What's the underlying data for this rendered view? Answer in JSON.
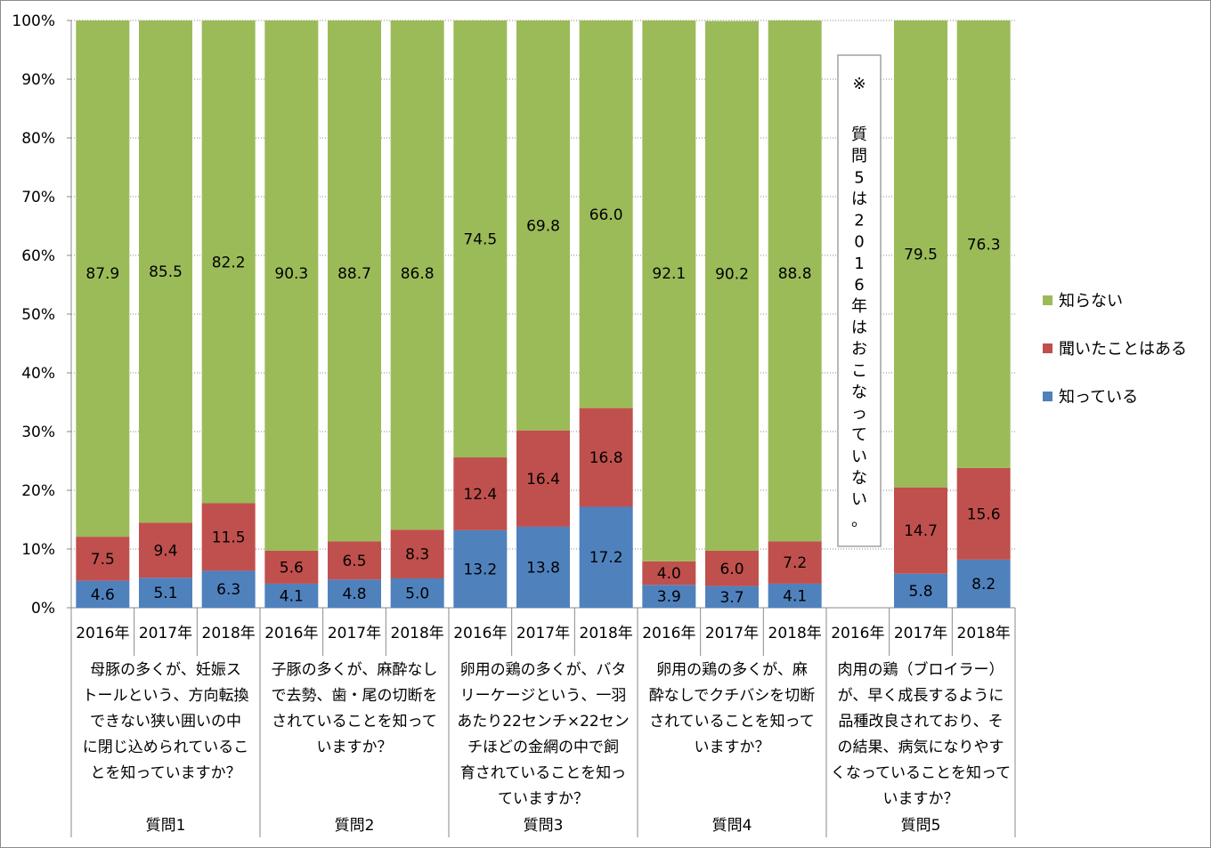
{
  "chart_data": {
    "type": "bar",
    "stacked": true,
    "percent_stacked": true,
    "y_ticks": [
      "0%",
      "10%",
      "20%",
      "30%",
      "40%",
      "50%",
      "60%",
      "70%",
      "80%",
      "90%",
      "100%"
    ],
    "ylim": [
      0,
      100
    ],
    "grid": "horizontal-dotted",
    "legend_position": "right",
    "colors": {
      "knows": "#4f81bd",
      "heard": "#c0504d",
      "unknown": "#9bbb59"
    },
    "legend": [
      {
        "key": "unknown",
        "label": "知らない"
      },
      {
        "key": "heard",
        "label": "聞いたことはある"
      },
      {
        "key": "knows",
        "label": "知っている"
      }
    ],
    "groups": [
      {
        "name": "質問1",
        "question_lines": [
          "母豚の多くが、妊娠ス",
          "トールという、方向転換",
          "できない狭い囲いの中",
          "に閉じ込められているこ",
          "とを知っていますか？"
        ],
        "bars": [
          {
            "year": "2016年",
            "knows": 4.6,
            "heard": 7.5,
            "unknown": 87.9
          },
          {
            "year": "2017年",
            "knows": 5.1,
            "heard": 9.4,
            "unknown": 85.5
          },
          {
            "year": "2018年",
            "knows": 6.3,
            "heard": 11.5,
            "unknown": 82.2
          }
        ]
      },
      {
        "name": "質問2",
        "question_lines": [
          "子豚の多くが、麻酔なし",
          "で去勢、歯・尾の切断を",
          "されていることを知って",
          "いますか？"
        ],
        "bars": [
          {
            "year": "2016年",
            "knows": 4.1,
            "heard": 5.6,
            "unknown": 90.3
          },
          {
            "year": "2017年",
            "knows": 4.8,
            "heard": 6.5,
            "unknown": 88.7
          },
          {
            "year": "2018年",
            "knows": 5.0,
            "heard": 8.3,
            "unknown": 86.8
          }
        ]
      },
      {
        "name": "質問3",
        "question_lines": [
          "卵用の鶏の多くが、バタ",
          "リーケージという、一羽",
          "あたり22センチ×22セン",
          "チほどの金網の中で飼",
          "育されていることを知っ",
          "ていますか？"
        ],
        "bars": [
          {
            "year": "2016年",
            "knows": 13.2,
            "heard": 12.4,
            "unknown": 74.5
          },
          {
            "year": "2017年",
            "knows": 13.8,
            "heard": 16.4,
            "unknown": 69.8
          },
          {
            "year": "2018年",
            "knows": 17.2,
            "heard": 16.8,
            "unknown": 66.0
          }
        ]
      },
      {
        "name": "質問4",
        "question_lines": [
          "卵用の鶏の多くが、麻",
          "酔なしでクチバシを切断",
          "されていることを知って",
          "いますか？"
        ],
        "bars": [
          {
            "year": "2016年",
            "knows": 3.9,
            "heard": 4.0,
            "unknown": 92.1
          },
          {
            "year": "2017年",
            "knows": 3.7,
            "heard": 6.0,
            "unknown": 90.2
          },
          {
            "year": "2018年",
            "knows": 4.1,
            "heard": 7.2,
            "unknown": 88.8
          }
        ]
      },
      {
        "name": "質問5",
        "question_lines": [
          "肉用の鶏（ブロイラー）",
          "が、早く成長するように",
          "品種改良されており、そ",
          "の結果、病気になりやす",
          "くなっていることを知って",
          "いますか？"
        ],
        "bars": [
          {
            "year": "2016年",
            "knows": null,
            "heard": null,
            "unknown": null
          },
          {
            "year": "2017年",
            "knows": 5.8,
            "heard": 14.7,
            "unknown": 79.5
          },
          {
            "year": "2018年",
            "knows": 8.2,
            "heard": 15.6,
            "unknown": 76.3
          }
        ]
      }
    ],
    "annotation": {
      "lines": [
        "※",
        "質",
        "問",
        "5",
        "は",
        "2",
        "0",
        "1",
        "6",
        "年",
        "は",
        "お",
        "こ",
        "な",
        "っ",
        "て",
        "い",
        "な",
        "い",
        "。"
      ]
    }
  }
}
